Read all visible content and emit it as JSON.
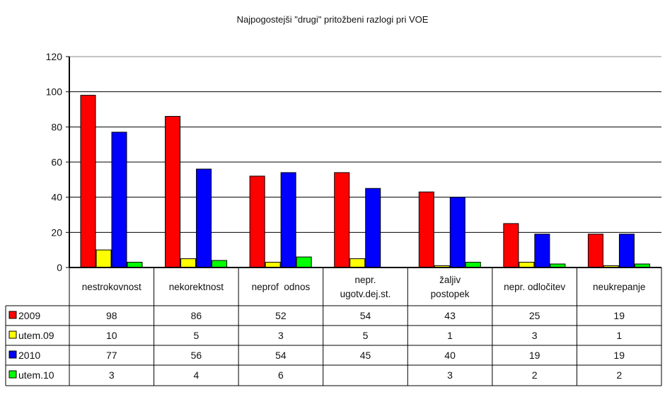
{
  "chart_data": {
    "type": "bar",
    "title": "Najpogostejši \"drugi\" pritožbeni razlogi pri VOE",
    "categories": [
      "nestrokovnost",
      "nekorektnost",
      "neprof  odnos",
      [
        "nepr.",
        "ugotv.dej.st."
      ],
      [
        "žaljiv",
        "postopek"
      ],
      "nepr. odločitev",
      "neukrepanje"
    ],
    "series": [
      {
        "name": "2009",
        "color": "#ff0000",
        "values": [
          98,
          86,
          52,
          54,
          43,
          25,
          19
        ]
      },
      {
        "name": "utem.09",
        "color": "#ffff00",
        "values": [
          10,
          5,
          3,
          5,
          1,
          3,
          1
        ]
      },
      {
        "name": "2010",
        "color": "#0000ff",
        "values": [
          77,
          56,
          54,
          45,
          40,
          19,
          19
        ]
      },
      {
        "name": "utem.10",
        "color": "#00ff00",
        "values": [
          3,
          4,
          6,
          null,
          3,
          2,
          2
        ]
      }
    ],
    "ylim": [
      0,
      120
    ],
    "yticks": [
      0,
      20,
      40,
      60,
      80,
      100,
      120
    ],
    "grid": true,
    "legend": "data-table"
  }
}
